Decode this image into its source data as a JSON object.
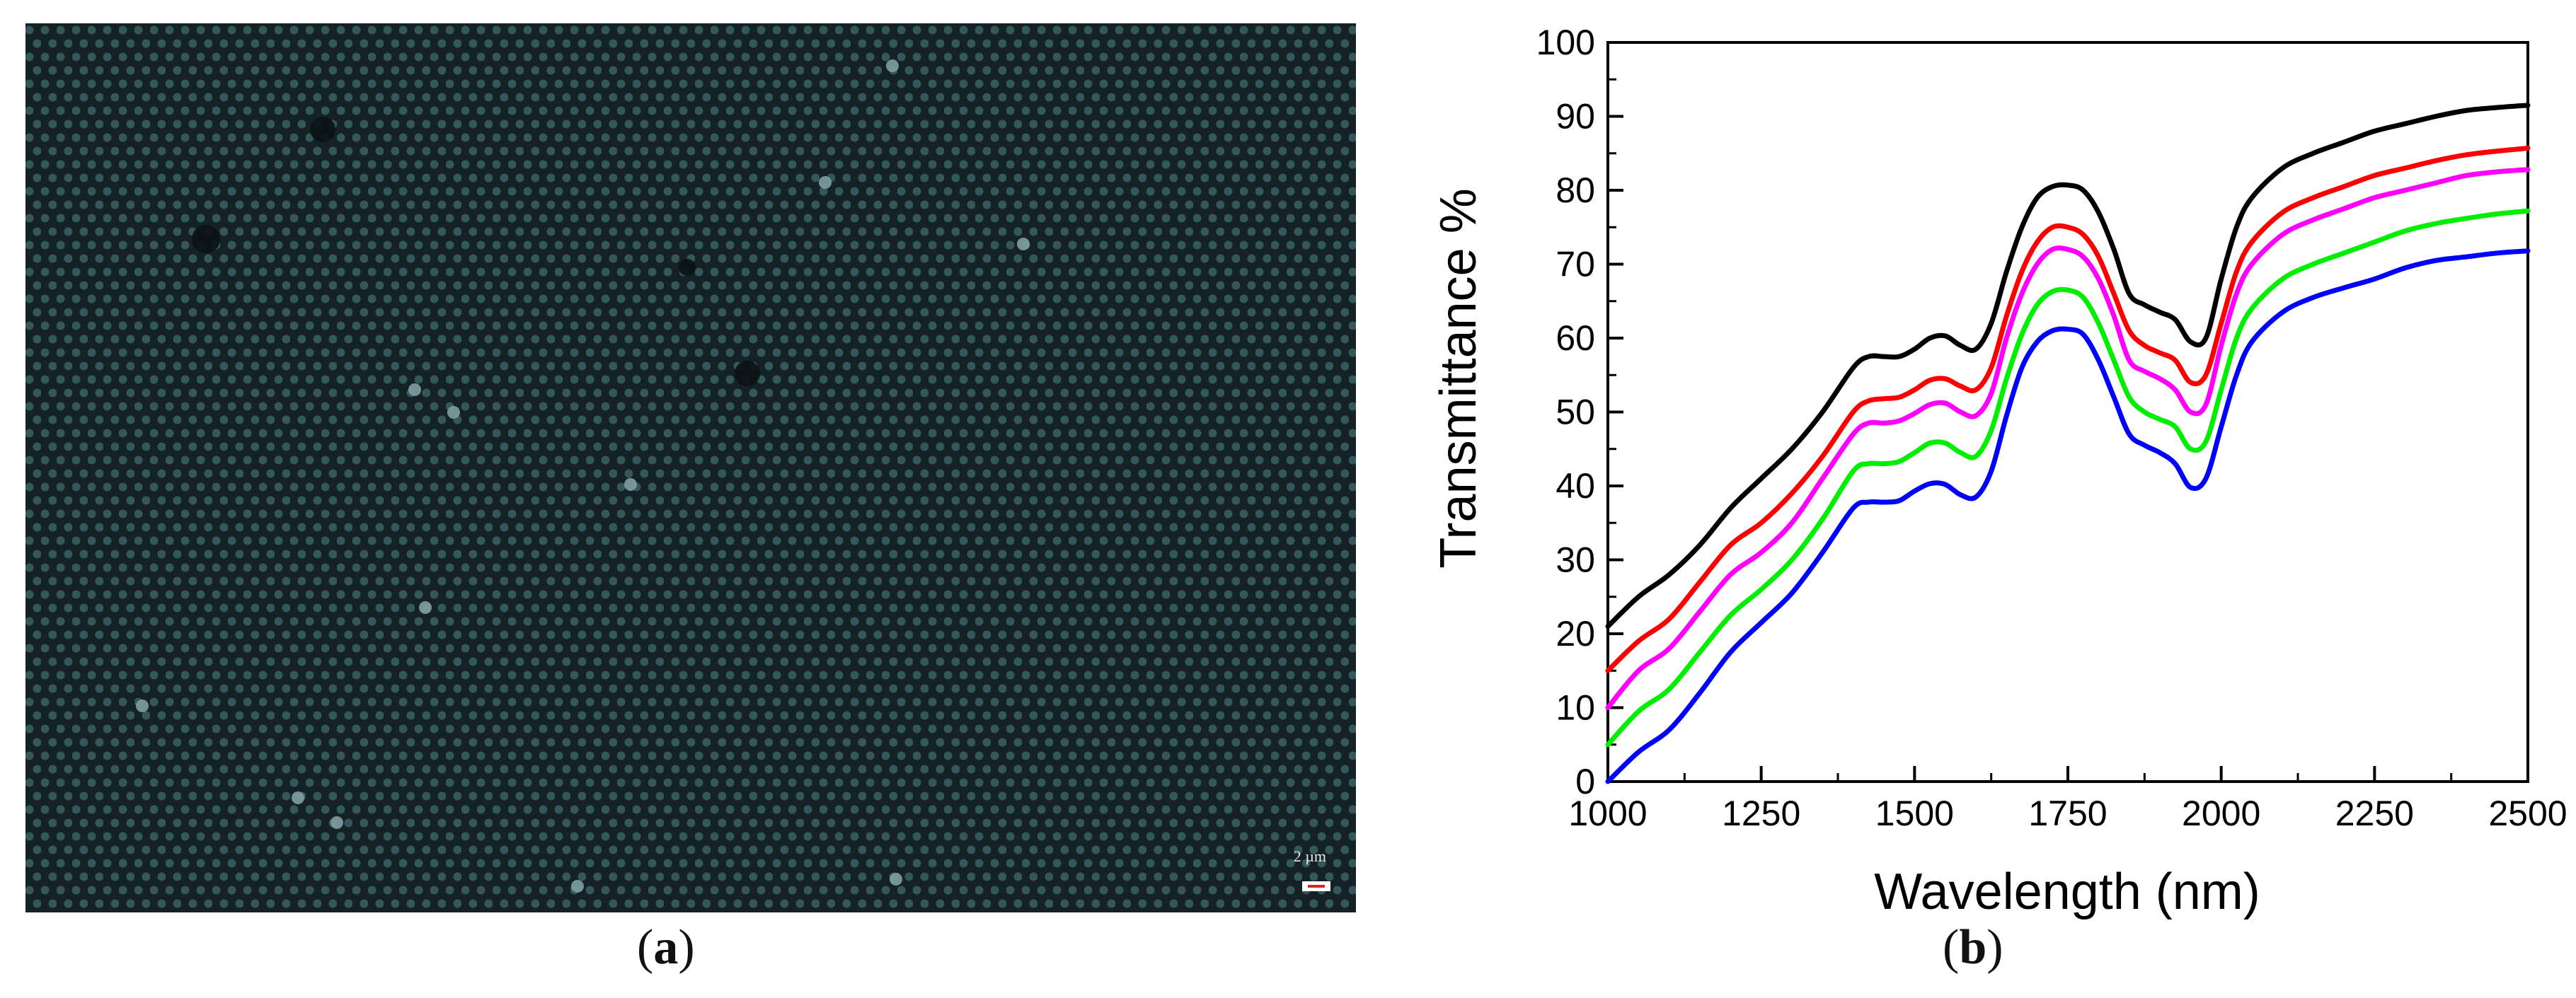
{
  "panel_a": {
    "caption_open": "(",
    "caption_letter": "a",
    "caption_close": ")",
    "scale_label": "2 µm",
    "background_color": "#17262a",
    "pore_color": "#4a7a80"
  },
  "panel_b": {
    "caption_open": "(",
    "caption_letter": "b",
    "caption_close": ")"
  },
  "chart_data": {
    "type": "line",
    "title": "",
    "xlabel": "Wavelength (nm)",
    "ylabel": "Transmittance %",
    "xlim": [
      1000,
      2500
    ],
    "ylim": [
      0,
      100
    ],
    "xticks": [
      1000,
      1250,
      1500,
      1750,
      2000,
      2250,
      2500
    ],
    "yticks": [
      0,
      10,
      20,
      30,
      40,
      50,
      60,
      70,
      80,
      90,
      100
    ],
    "grid": false,
    "legend": "none",
    "x": [
      1000,
      1050,
      1100,
      1150,
      1200,
      1250,
      1300,
      1350,
      1400,
      1425,
      1450,
      1475,
      1500,
      1525,
      1550,
      1575,
      1600,
      1625,
      1650,
      1675,
      1700,
      1725,
      1750,
      1775,
      1800,
      1825,
      1850,
      1875,
      1900,
      1925,
      1950,
      1975,
      2000,
      2025,
      2050,
      2100,
      2150,
      2200,
      2250,
      2300,
      2350,
      2400,
      2450,
      2500
    ],
    "series": [
      {
        "name": "black",
        "color": "#000000",
        "values": [
          21,
          25,
          28,
          32,
          37,
          41,
          45,
          50,
          56,
          57.5,
          57.5,
          57.5,
          58.5,
          60,
          60.3,
          59,
          58.5,
          62,
          69,
          75,
          79,
          80.5,
          80.7,
          80,
          77,
          72,
          66,
          64.5,
          63.5,
          62.5,
          59.5,
          60,
          68,
          75,
          79,
          83,
          85,
          86.5,
          88,
          89,
          90,
          90.8,
          91.2,
          91.5
        ]
      },
      {
        "name": "red",
        "color": "#ff0000",
        "values": [
          15,
          19,
          22,
          27,
          32,
          35,
          39,
          44,
          50,
          51.5,
          51.8,
          52,
          53,
          54.3,
          54.5,
          53.5,
          53,
          56,
          63,
          69,
          73,
          75,
          75,
          74,
          71,
          66,
          61,
          59,
          58,
          57,
          54,
          55,
          62,
          69,
          73,
          77,
          79,
          80.5,
          82,
          83,
          84,
          84.8,
          85.3,
          85.7
        ]
      },
      {
        "name": "magenta",
        "color": "#ff00ff",
        "values": [
          10,
          15,
          18,
          23,
          28,
          31,
          35,
          41,
          47,
          48.5,
          48.5,
          48.8,
          49.8,
          51,
          51.2,
          50,
          49.5,
          52.5,
          60,
          66,
          70,
          72,
          72,
          71,
          68,
          63,
          57,
          55.5,
          54.5,
          53,
          50,
          51,
          59,
          66,
          70,
          74,
          76,
          77.5,
          79,
          80,
          81,
          82,
          82.5,
          82.8
        ]
      },
      {
        "name": "green",
        "color": "#00ee00",
        "values": [
          5,
          9.5,
          12.5,
          17.5,
          22.5,
          26,
          30,
          35.5,
          42,
          43,
          43,
          43.3,
          44.5,
          45.8,
          45.8,
          44.5,
          44,
          47.5,
          54.5,
          60.5,
          64.5,
          66.3,
          66.5,
          65.5,
          62,
          57,
          52,
          50,
          49,
          48,
          45,
          46,
          53,
          60,
          64,
          68,
          70,
          71.5,
          73,
          74.5,
          75.5,
          76.2,
          76.8,
          77.2
        ]
      },
      {
        "name": "blue",
        "color": "#0000ff",
        "values": [
          0,
          4,
          7,
          12,
          17.5,
          21.5,
          25.5,
          31,
          37,
          37.8,
          37.8,
          38,
          39.3,
          40.3,
          40.2,
          38.8,
          38.5,
          42,
          49.5,
          56,
          59.5,
          61,
          61.2,
          60.5,
          57,
          52,
          47,
          45.5,
          44.5,
          43,
          39.8,
          41,
          48,
          55,
          59.5,
          63.5,
          65.5,
          66.8,
          68,
          69.5,
          70.5,
          71,
          71.5,
          71.8
        ]
      }
    ]
  }
}
